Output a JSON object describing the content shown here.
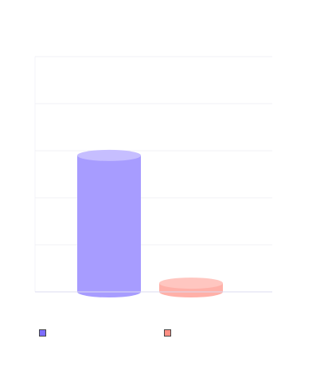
{
  "chart_data": {
    "type": "bar",
    "style": "3d-cylinder",
    "categories": [
      "",
      ""
    ],
    "series": [
      {
        "value": 58,
        "color": "#a79cff",
        "top_color": "#c6beff"
      },
      {
        "value": 3.7,
        "color": "#ffb0a8",
        "top_color": "#ffc6c0"
      }
    ],
    "ylim": [
      0,
      100
    ],
    "grid": true,
    "legend": "bottom",
    "title": "",
    "xlabel": "",
    "ylabel": ""
  }
}
